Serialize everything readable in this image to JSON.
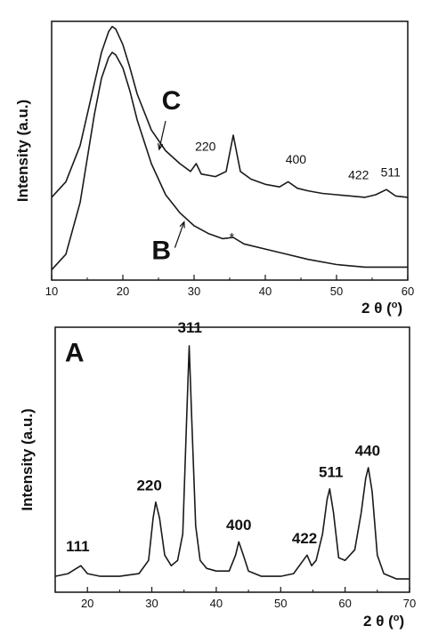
{
  "chart_data": [
    {
      "panel": "top",
      "type": "line",
      "ylabel": "Intensity (a.u.)",
      "xlabel_parts": [
        "2",
        "θ",
        "(",
        "o",
        ")"
      ],
      "xlim": [
        10,
        60
      ],
      "xticks": [
        10,
        20,
        30,
        40,
        50,
        60
      ],
      "grid": false,
      "legend": "none",
      "series": [
        {
          "name": "C",
          "x": [
            10,
            12,
            14,
            16,
            17,
            18,
            18.5,
            19,
            20,
            21,
            22,
            24,
            26,
            28,
            29.5,
            30.3,
            31,
            33,
            34.5,
            35.5,
            36.5,
            38,
            40,
            42,
            43.2,
            44.5,
            46,
            48,
            50,
            52,
            54,
            55.5,
            57,
            58.3,
            60
          ],
          "y": [
            0.32,
            0.38,
            0.52,
            0.76,
            0.88,
            0.96,
            0.98,
            0.97,
            0.91,
            0.82,
            0.72,
            0.58,
            0.5,
            0.45,
            0.42,
            0.45,
            0.41,
            0.4,
            0.42,
            0.56,
            0.42,
            0.39,
            0.37,
            0.36,
            0.38,
            0.355,
            0.345,
            0.335,
            0.33,
            0.325,
            0.32,
            0.33,
            0.35,
            0.325,
            0.32
          ]
        },
        {
          "name": "B",
          "x": [
            10,
            12,
            14,
            16,
            17,
            18,
            18.5,
            19,
            20,
            21,
            22,
            24,
            26,
            28,
            30,
            32,
            34,
            35.5,
            37,
            40,
            43,
            46,
            50,
            54,
            58,
            60
          ],
          "y": [
            0.04,
            0.1,
            0.3,
            0.64,
            0.78,
            0.86,
            0.88,
            0.87,
            0.82,
            0.73,
            0.62,
            0.45,
            0.33,
            0.26,
            0.21,
            0.18,
            0.16,
            0.165,
            0.14,
            0.12,
            0.1,
            0.08,
            0.06,
            0.05,
            0.05,
            0.05
          ]
        }
      ],
      "annotations": [
        {
          "text": "C",
          "letter": true,
          "x": 26.8,
          "y": 0.66
        },
        {
          "text": "B",
          "letter": true,
          "x": 25.4,
          "y": 0.08
        },
        {
          "text": "220",
          "x": 31.6,
          "y": 0.5
        },
        {
          "text": "400",
          "x": 44.3,
          "y": 0.45
        },
        {
          "text": "422",
          "x": 53.1,
          "y": 0.39
        },
        {
          "text": "511",
          "x": 57.6,
          "y": 0.4
        },
        {
          "text": "*",
          "x": 35.3,
          "y": 0.15
        }
      ],
      "arrows": [
        {
          "from": [
            26.0,
            0.615
          ],
          "to": [
            25.1,
            0.505
          ]
        },
        {
          "from": [
            27.3,
            0.125
          ],
          "to": [
            28.6,
            0.225
          ]
        }
      ]
    },
    {
      "panel": "bottom",
      "type": "line",
      "ylabel": "Intensity (a.u.)",
      "xlabel_parts": [
        "2",
        "θ",
        "(",
        "o",
        ")"
      ],
      "xlim": [
        15,
        70
      ],
      "xticks": [
        20,
        30,
        40,
        50,
        60,
        70
      ],
      "grid": false,
      "legend": "none",
      "series": [
        {
          "name": "A",
          "x": [
            15,
            17,
            18.3,
            19,
            20,
            22,
            25,
            28,
            29.5,
            30.2,
            30.6,
            31.2,
            32,
            33,
            34,
            34.8,
            35.4,
            35.8,
            36.2,
            36.8,
            37.5,
            38.5,
            40,
            42,
            43,
            43.5,
            44.2,
            45,
            47,
            50,
            52,
            53.5,
            54.1,
            54.8,
            55.5,
            56.5,
            57.2,
            57.6,
            58.2,
            59,
            60,
            61.5,
            62.5,
            63.2,
            63.6,
            64.2,
            65,
            66,
            68,
            70
          ],
          "y": [
            0.06,
            0.07,
            0.09,
            0.1,
            0.07,
            0.06,
            0.06,
            0.07,
            0.12,
            0.28,
            0.34,
            0.28,
            0.14,
            0.1,
            0.12,
            0.22,
            0.65,
            0.93,
            0.65,
            0.25,
            0.12,
            0.09,
            0.08,
            0.08,
            0.14,
            0.19,
            0.14,
            0.08,
            0.06,
            0.06,
            0.07,
            0.12,
            0.14,
            0.1,
            0.12,
            0.22,
            0.35,
            0.39,
            0.3,
            0.13,
            0.12,
            0.16,
            0.3,
            0.43,
            0.47,
            0.38,
            0.14,
            0.07,
            0.05,
            0.05
          ]
        }
      ],
      "annotations": [
        {
          "text": "A",
          "letter": true,
          "x": 18.0,
          "y": 0.87
        },
        {
          "text": "111",
          "x": 18.5,
          "y": 0.155
        },
        {
          "text": "220",
          "x": 29.6,
          "y": 0.385
        },
        {
          "text": "311",
          "x": 35.9,
          "y": 0.98
        },
        {
          "text": "400",
          "x": 43.5,
          "y": 0.235
        },
        {
          "text": "422",
          "x": 53.7,
          "y": 0.185
        },
        {
          "text": "511",
          "x": 57.8,
          "y": 0.435
        },
        {
          "text": "440",
          "x": 63.5,
          "y": 0.515
        }
      ],
      "arrows": []
    }
  ]
}
